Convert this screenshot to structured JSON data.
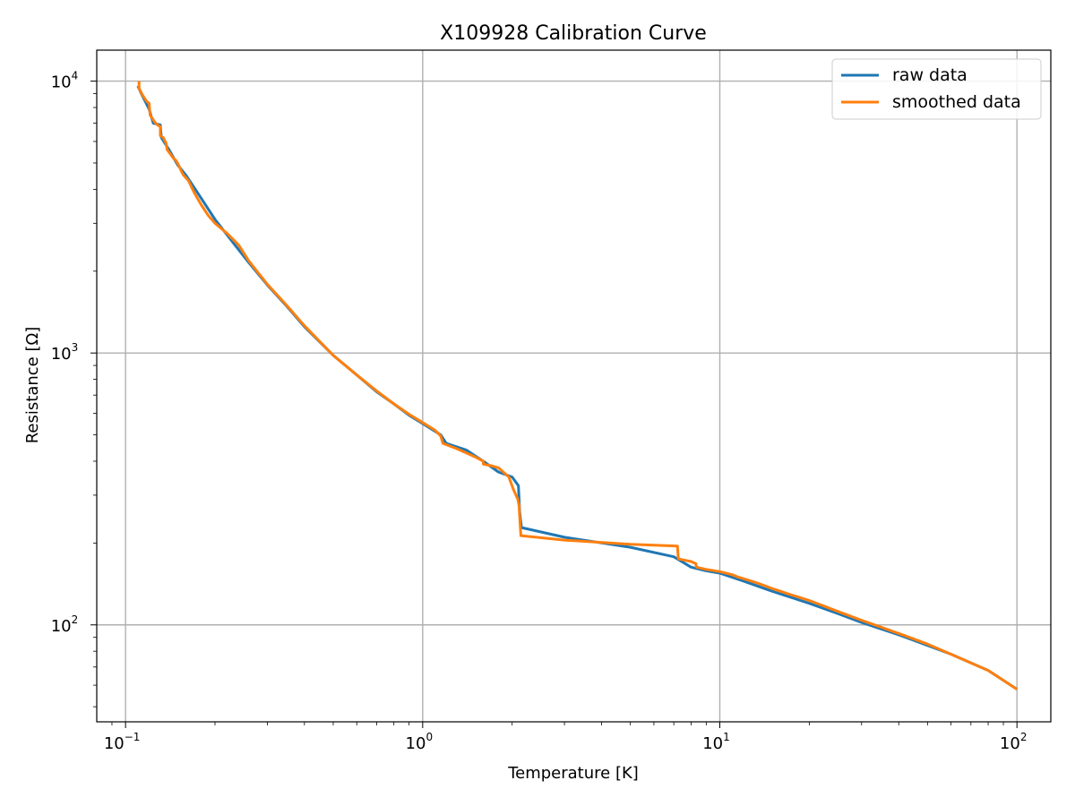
{
  "chart_data": {
    "type": "line",
    "title": "X109928 Calibration Curve",
    "xlabel": "Temperature [K]",
    "ylabel": "Resistance [Ω]",
    "xscale": "log",
    "yscale": "log",
    "xlim": [
      0.08,
      130
    ],
    "ylim": [
      44,
      13000
    ],
    "grid": true,
    "legend_position": "top-right",
    "x_ticks": [
      {
        "value": 0.1,
        "base": "10",
        "exp": "−1"
      },
      {
        "value": 1,
        "base": "10",
        "exp": "0"
      },
      {
        "value": 10,
        "base": "10",
        "exp": "1"
      },
      {
        "value": 100,
        "base": "10",
        "exp": "2"
      }
    ],
    "y_ticks": [
      {
        "value": 100,
        "base": "10",
        "exp": "2"
      },
      {
        "value": 1000,
        "base": "10",
        "exp": "3"
      },
      {
        "value": 10000,
        "base": "10",
        "exp": "4"
      }
    ],
    "series": [
      {
        "name": "raw data",
        "color": "#1f77b4",
        "x": [
          0.11,
          0.113,
          0.12,
          0.124,
          0.131,
          0.132,
          0.14,
          0.15,
          0.16,
          0.18,
          0.2,
          0.23,
          0.26,
          0.3,
          0.35,
          0.4,
          0.5,
          0.6,
          0.7,
          0.8,
          0.9,
          1.0,
          1.15,
          1.2,
          1.4,
          1.6,
          1.8,
          2.0,
          2.1,
          2.12,
          2.15,
          3.0,
          5.0,
          7.0,
          8.0,
          9.0,
          10.0,
          12.0,
          15.0,
          20.0,
          25.0,
          30.0,
          40.0,
          50.0,
          60.0,
          80.0,
          100.0
        ],
        "y": [
          9600,
          9000,
          7900,
          7000,
          6900,
          6200,
          5600,
          4900,
          4500,
          3700,
          3100,
          2550,
          2150,
          1780,
          1480,
          1250,
          980,
          830,
          720,
          650,
          590,
          550,
          500,
          465,
          440,
          400,
          365,
          350,
          325,
          260,
          228,
          210,
          193,
          178,
          163,
          158,
          155,
          145,
          133,
          120,
          110,
          102,
          92,
          84,
          78,
          68,
          58
        ]
      },
      {
        "name": "smoothed data",
        "color": "#ff7f0e",
        "x": [
          0.111,
          0.111,
          0.114,
          0.118,
          0.12,
          0.121,
          0.125,
          0.128,
          0.131,
          0.131,
          0.134,
          0.137,
          0.138,
          0.145,
          0.148,
          0.151,
          0.155,
          0.157,
          0.163,
          0.17,
          0.18,
          0.19,
          0.2,
          0.22,
          0.24,
          0.26,
          0.3,
          0.35,
          0.4,
          0.5,
          0.6,
          0.7,
          0.8,
          0.9,
          1.0,
          1.1,
          1.15,
          1.17,
          1.3,
          1.5,
          1.6,
          1.6,
          1.7,
          1.8,
          1.95,
          2.02,
          2.09,
          2.11,
          2.12,
          2.13,
          2.14,
          3.0,
          5.0,
          7.2,
          7.25,
          8.0,
          8.3,
          8.35,
          9.0,
          10.0,
          11.0,
          11.5,
          12.0,
          13.0,
          14.0,
          15.0,
          16.0,
          17.0,
          20.0,
          25.0,
          30.0,
          40.0,
          50.0,
          60.0,
          80.0,
          100.0
        ],
        "y": [
          10000,
          9400,
          8900,
          8400,
          8300,
          7500,
          7100,
          6900,
          6800,
          6300,
          6200,
          5900,
          5600,
          5200,
          5100,
          4900,
          4600,
          4500,
          4300,
          3900,
          3500,
          3200,
          3000,
          2750,
          2500,
          2180,
          1790,
          1490,
          1260,
          980,
          830,
          725,
          650,
          595,
          555,
          520,
          495,
          465,
          445,
          415,
          400,
          390,
          385,
          378,
          350,
          315,
          290,
          275,
          250,
          230,
          213,
          205,
          198,
          195,
          175,
          171,
          168,
          163,
          160,
          157,
          153,
          150,
          148,
          144,
          140,
          136,
          133,
          130,
          123,
          112,
          104,
          93,
          85,
          78,
          68,
          58
        ]
      }
    ]
  }
}
